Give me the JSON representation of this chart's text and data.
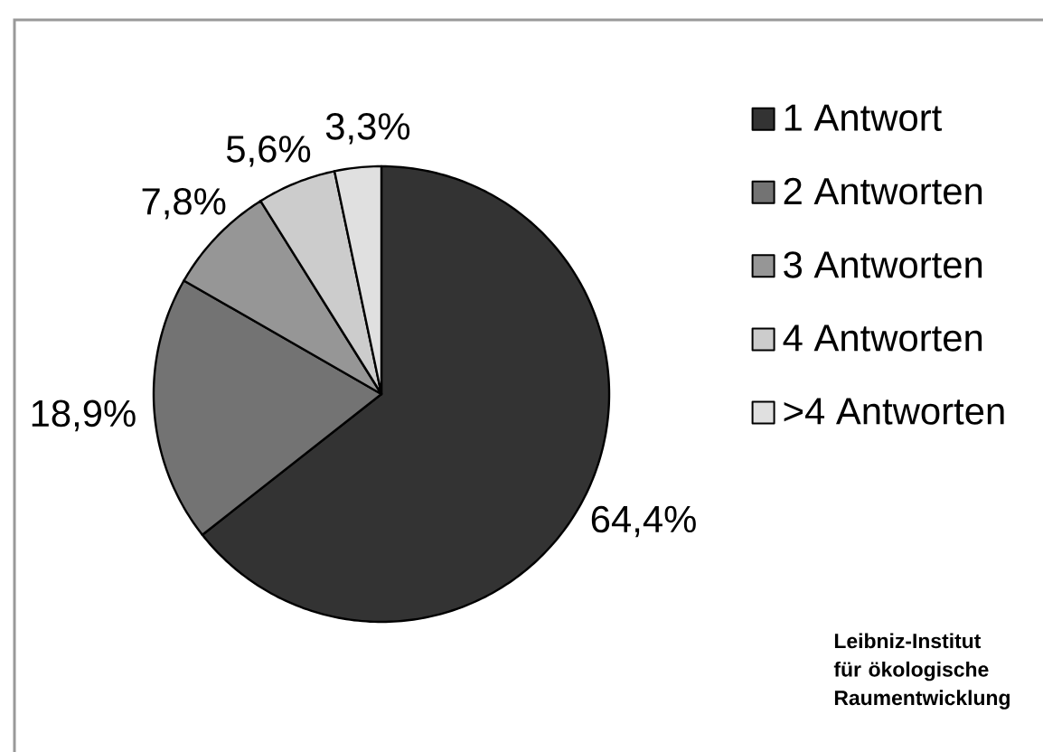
{
  "chart_data": {
    "type": "pie",
    "categories": [
      "1 Antwort",
      "2 Antworten",
      "3 Antworten",
      "4 Antworten",
      ">4 Antworten"
    ],
    "values": [
      64.4,
      18.9,
      7.8,
      5.6,
      3.3
    ],
    "colors": [
      "#333333",
      "#737373",
      "#969696",
      "#cccccc",
      "#e0e0e0"
    ],
    "value_labels": [
      "64,4%",
      "18,9%",
      "7,8%",
      "5,6%",
      "3,3%"
    ],
    "legend": "right",
    "annotations": [
      "Leibniz-Institut für ökologische Raumentwicklung"
    ]
  }
}
